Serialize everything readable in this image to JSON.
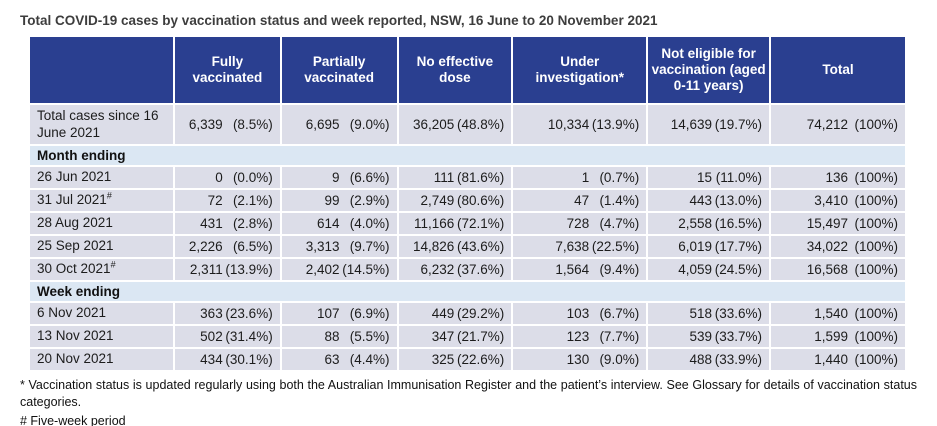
{
  "title": "Total COVID-19 cases by vaccination status and week reported, NSW, 16 June to 20 November 2021",
  "colors": {
    "header_bg": "#2a3f90",
    "header_text": "#ffffff",
    "data_row_bg": "#dcdde8",
    "section_row_bg": "#dbe7f3",
    "title_text": "#3d3d3d"
  },
  "table": {
    "columns": [
      "",
      "Fully vaccinated",
      "Partially vaccinated",
      "No effective dose",
      "Under investigation*",
      "Not eligible for vaccination (aged 0-11 years)",
      "Total"
    ],
    "rows": [
      {
        "type": "data",
        "label": "Total cases since 16 June 2021",
        "sup": "",
        "cells": [
          [
            "6,339",
            "(8.5%)"
          ],
          [
            "6,695",
            "(9.0%)"
          ],
          [
            "36,205",
            "(48.8%)"
          ],
          [
            "10,334",
            "(13.9%)"
          ],
          [
            "14,639",
            "(19.7%)"
          ],
          [
            "74,212",
            "(100%)"
          ]
        ]
      },
      {
        "type": "section",
        "label": "Month ending"
      },
      {
        "type": "data",
        "label": "26 Jun 2021",
        "sup": "",
        "cells": [
          [
            "0",
            "(0.0%)"
          ],
          [
            "9",
            "(6.6%)"
          ],
          [
            "111",
            "(81.6%)"
          ],
          [
            "1",
            "(0.7%)"
          ],
          [
            "15",
            "(11.0%)"
          ],
          [
            "136",
            "(100%)"
          ]
        ]
      },
      {
        "type": "data",
        "label": "31 Jul 2021",
        "sup": "#",
        "cells": [
          [
            "72",
            "(2.1%)"
          ],
          [
            "99",
            "(2.9%)"
          ],
          [
            "2,749",
            "(80.6%)"
          ],
          [
            "47",
            "(1.4%)"
          ],
          [
            "443",
            "(13.0%)"
          ],
          [
            "3,410",
            "(100%)"
          ]
        ]
      },
      {
        "type": "data",
        "label": "28 Aug 2021",
        "sup": "",
        "cells": [
          [
            "431",
            "(2.8%)"
          ],
          [
            "614",
            "(4.0%)"
          ],
          [
            "11,166",
            "(72.1%)"
          ],
          [
            "728",
            "(4.7%)"
          ],
          [
            "2,558",
            "(16.5%)"
          ],
          [
            "15,497",
            "(100%)"
          ]
        ]
      },
      {
        "type": "data",
        "label": "25 Sep 2021",
        "sup": "",
        "cells": [
          [
            "2,226",
            "(6.5%)"
          ],
          [
            "3,313",
            "(9.7%)"
          ],
          [
            "14,826",
            "(43.6%)"
          ],
          [
            "7,638",
            "(22.5%)"
          ],
          [
            "6,019",
            "(17.7%)"
          ],
          [
            "34,022",
            "(100%)"
          ]
        ]
      },
      {
        "type": "data",
        "label": "30 Oct 2021",
        "sup": "#",
        "cells": [
          [
            "2,311",
            "(13.9%)"
          ],
          [
            "2,402",
            "(14.5%)"
          ],
          [
            "6,232",
            "(37.6%)"
          ],
          [
            "1,564",
            "(9.4%)"
          ],
          [
            "4,059",
            "(24.5%)"
          ],
          [
            "16,568",
            "(100%)"
          ]
        ]
      },
      {
        "type": "section",
        "label": "Week ending"
      },
      {
        "type": "data",
        "label": "6 Nov 2021",
        "sup": "",
        "cells": [
          [
            "363",
            "(23.6%)"
          ],
          [
            "107",
            "(6.9%)"
          ],
          [
            "449",
            "(29.2%)"
          ],
          [
            "103",
            "(6.7%)"
          ],
          [
            "518",
            "(33.6%)"
          ],
          [
            "1,540",
            "(100%)"
          ]
        ]
      },
      {
        "type": "data",
        "label": "13 Nov 2021",
        "sup": "",
        "cells": [
          [
            "502",
            "(31.4%)"
          ],
          [
            "88",
            "(5.5%)"
          ],
          [
            "347",
            "(21.7%)"
          ],
          [
            "123",
            "(7.7%)"
          ],
          [
            "539",
            "(33.7%)"
          ],
          [
            "1,599",
            "(100%)"
          ]
        ]
      },
      {
        "type": "data",
        "label": "20 Nov 2021",
        "sup": "",
        "cells": [
          [
            "434",
            "(30.1%)"
          ],
          [
            "63",
            "(4.4%)"
          ],
          [
            "325",
            "(22.6%)"
          ],
          [
            "130",
            "(9.0%)"
          ],
          [
            "488",
            "(33.9%)"
          ],
          [
            "1,440",
            "(100%)"
          ]
        ]
      }
    ]
  },
  "footnotes": {
    "asterisk": "* Vaccination status is updated regularly using both the Australian Immunisation Register and the patient’s interview. See Glossary for details of vaccination status categories.",
    "hash": "# Five-week period"
  }
}
